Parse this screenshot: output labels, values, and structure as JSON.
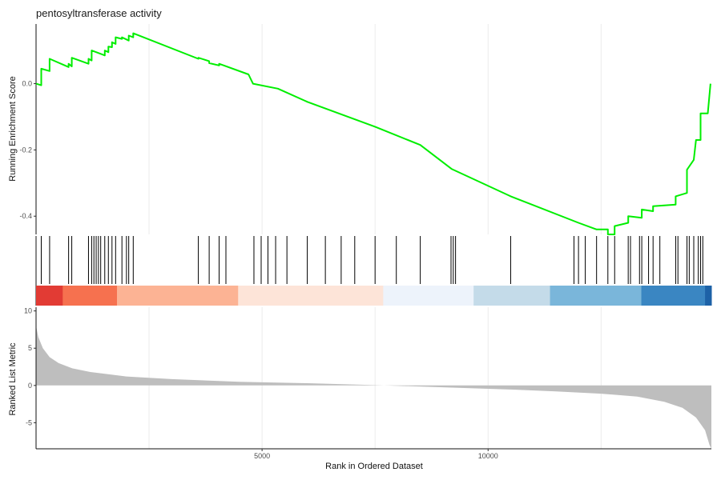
{
  "chart_data": {
    "type": "line",
    "title": "pentosyltransferase activity",
    "xlabel": "Rank in Ordered Dataset",
    "colors": {
      "curve": "#00ee00",
      "hits": "#000000",
      "metric_area": "#bebebe",
      "grid": "#ebebeb"
    },
    "x_ticks": [
      5000,
      10000
    ],
    "x_tick_labels": [
      "5000",
      "10000"
    ],
    "xlim": [
      0,
      14940
    ],
    "es_panel": {
      "ylabel": "Running Enrichment Score",
      "ylim": [
        -0.455,
        0.18
      ],
      "y_ticks": [
        0.0,
        -0.2,
        -0.4
      ],
      "y_tick_labels": [
        "0.0",
        "-0.2",
        "-0.4"
      ],
      "curve_points": [
        [
          0,
          0.0
        ],
        [
          115,
          -0.005
        ],
        [
          115,
          0.045
        ],
        [
          300,
          0.038
        ],
        [
          300,
          0.075
        ],
        [
          720,
          0.05
        ],
        [
          720,
          0.06
        ],
        [
          790,
          0.052
        ],
        [
          790,
          0.078
        ],
        [
          1160,
          0.06
        ],
        [
          1160,
          0.075
        ],
        [
          1230,
          0.07
        ],
        [
          1230,
          0.1
        ],
        [
          1520,
          0.085
        ],
        [
          1520,
          0.1
        ],
        [
          1600,
          0.095
        ],
        [
          1600,
          0.112
        ],
        [
          1680,
          0.11
        ],
        [
          1680,
          0.125
        ],
        [
          1760,
          0.12
        ],
        [
          1760,
          0.14
        ],
        [
          1900,
          0.135
        ],
        [
          1900,
          0.14
        ],
        [
          2050,
          0.13
        ],
        [
          2050,
          0.145
        ],
        [
          2150,
          0.14
        ],
        [
          2150,
          0.152
        ],
        [
          3590,
          0.075
        ],
        [
          3590,
          0.078
        ],
        [
          3830,
          0.068
        ],
        [
          3830,
          0.062
        ],
        [
          4050,
          0.055
        ],
        [
          4050,
          0.06
        ],
        [
          4700,
          0.028
        ],
        [
          4800,
          0.0
        ],
        [
          5350,
          -0.015
        ],
        [
          6000,
          -0.055
        ],
        [
          7500,
          -0.13
        ],
        [
          8500,
          -0.185
        ],
        [
          9200,
          -0.258
        ],
        [
          10500,
          -0.34
        ],
        [
          12000,
          -0.42
        ],
        [
          12400,
          -0.44
        ],
        [
          12650,
          -0.44
        ],
        [
          12650,
          -0.455
        ],
        [
          12800,
          -0.455
        ],
        [
          12800,
          -0.43
        ],
        [
          13100,
          -0.42
        ],
        [
          13100,
          -0.4
        ],
        [
          13400,
          -0.405
        ],
        [
          13400,
          -0.38
        ],
        [
          13650,
          -0.385
        ],
        [
          13650,
          -0.37
        ],
        [
          14150,
          -0.365
        ],
        [
          14150,
          -0.34
        ],
        [
          14400,
          -0.33
        ],
        [
          14400,
          -0.26
        ],
        [
          14550,
          -0.23
        ],
        [
          14600,
          -0.17
        ],
        [
          14700,
          -0.17
        ],
        [
          14700,
          -0.09
        ],
        [
          14860,
          -0.09
        ],
        [
          14920,
          0.0
        ]
      ]
    },
    "hit_positions": [
      115,
      300,
      720,
      790,
      1160,
      1230,
      1280,
      1330,
      1380,
      1430,
      1520,
      1600,
      1680,
      1760,
      1900,
      2000,
      2050,
      2150,
      3590,
      3830,
      4050,
      4200,
      4820,
      4980,
      5130,
      5300,
      5550,
      6000,
      6400,
      6750,
      7050,
      7500,
      7970,
      8500,
      9180,
      9230,
      9280,
      10500,
      11900,
      12000,
      12150,
      12400,
      12650,
      12800,
      13100,
      13150,
      13350,
      13400,
      13550,
      13650,
      13800,
      14150,
      14200,
      14400,
      14450,
      14550,
      14650,
      14700,
      14750
    ],
    "color_band": [
      {
        "from": 0,
        "to": 590,
        "color": "#e23b34"
      },
      {
        "from": 590,
        "to": 1790,
        "color": "#f6714f"
      },
      {
        "from": 1790,
        "to": 4470,
        "color": "#fcb394"
      },
      {
        "from": 4470,
        "to": 7680,
        "color": "#fde4d8"
      },
      {
        "from": 7680,
        "to": 9680,
        "color": "#edf3fb"
      },
      {
        "from": 9680,
        "to": 11370,
        "color": "#c4dbe9"
      },
      {
        "from": 11370,
        "to": 13390,
        "color": "#7ab6da"
      },
      {
        "from": 13390,
        "to": 14800,
        "color": "#3a86c2"
      },
      {
        "from": 14800,
        "to": 14940,
        "color": "#1d62a7"
      }
    ],
    "metric_panel": {
      "ylabel": "Ranked List Metric",
      "ylim": [
        -8.5,
        10.5
      ],
      "y_ticks": [
        10,
        5,
        0,
        -5
      ],
      "y_tick_labels": [
        "10",
        "5",
        "0",
        "-5"
      ],
      "area_points": [
        [
          0,
          8.0
        ],
        [
          50,
          6.5
        ],
        [
          150,
          5.0
        ],
        [
          300,
          3.8
        ],
        [
          500,
          3.0
        ],
        [
          800,
          2.3
        ],
        [
          1200,
          1.8
        ],
        [
          2000,
          1.2
        ],
        [
          3000,
          0.85
        ],
        [
          4500,
          0.5
        ],
        [
          6000,
          0.3
        ],
        [
          7500,
          0.05
        ],
        [
          9000,
          -0.25
        ],
        [
          10500,
          -0.55
        ],
        [
          11500,
          -0.8
        ],
        [
          12500,
          -1.1
        ],
        [
          13300,
          -1.5
        ],
        [
          13900,
          -2.2
        ],
        [
          14300,
          -3.0
        ],
        [
          14600,
          -4.3
        ],
        [
          14800,
          -6.0
        ],
        [
          14900,
          -8.0
        ],
        [
          14940,
          -8.5
        ]
      ]
    }
  }
}
